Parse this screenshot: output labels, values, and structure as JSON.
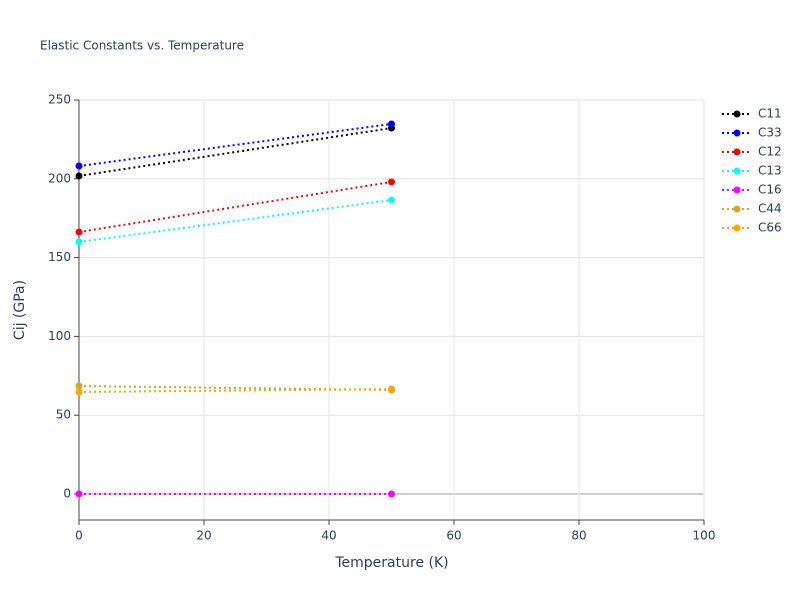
{
  "chart_data": {
    "type": "line",
    "title": "Elastic Constants vs. Temperature",
    "x_label": "Temperature (K)",
    "y_label": "Cij (GPa)",
    "x": [
      0,
      50
    ],
    "series": [
      {
        "name": "C11",
        "color": "black",
        "values": [
          201.8,
          232.2
        ]
      },
      {
        "name": "C33",
        "color": "blue",
        "values": [
          208.1,
          234.8
        ]
      },
      {
        "name": "C12",
        "color": "red",
        "values": [
          166.2,
          198.0
        ]
      },
      {
        "name": "C13",
        "color": "cyan",
        "values": [
          159.9,
          186.5
        ]
      },
      {
        "name": "C16",
        "color": "magenta",
        "values": [
          0,
          0
        ]
      },
      {
        "name": "C44",
        "color": "goldenrod",
        "values": [
          68.5,
          66.0
        ]
      },
      {
        "name": "C66",
        "color": "orange",
        "values": [
          64.7,
          66.6
        ]
      }
    ],
    "xlim": [
      0,
      100
    ],
    "xticks": [
      0,
      20,
      40,
      60,
      80,
      100
    ],
    "ylim": [
      -16.5,
      250
    ],
    "yticks": [
      0,
      50,
      100,
      150,
      200,
      250
    ],
    "grid": true,
    "legend": "top-right"
  }
}
